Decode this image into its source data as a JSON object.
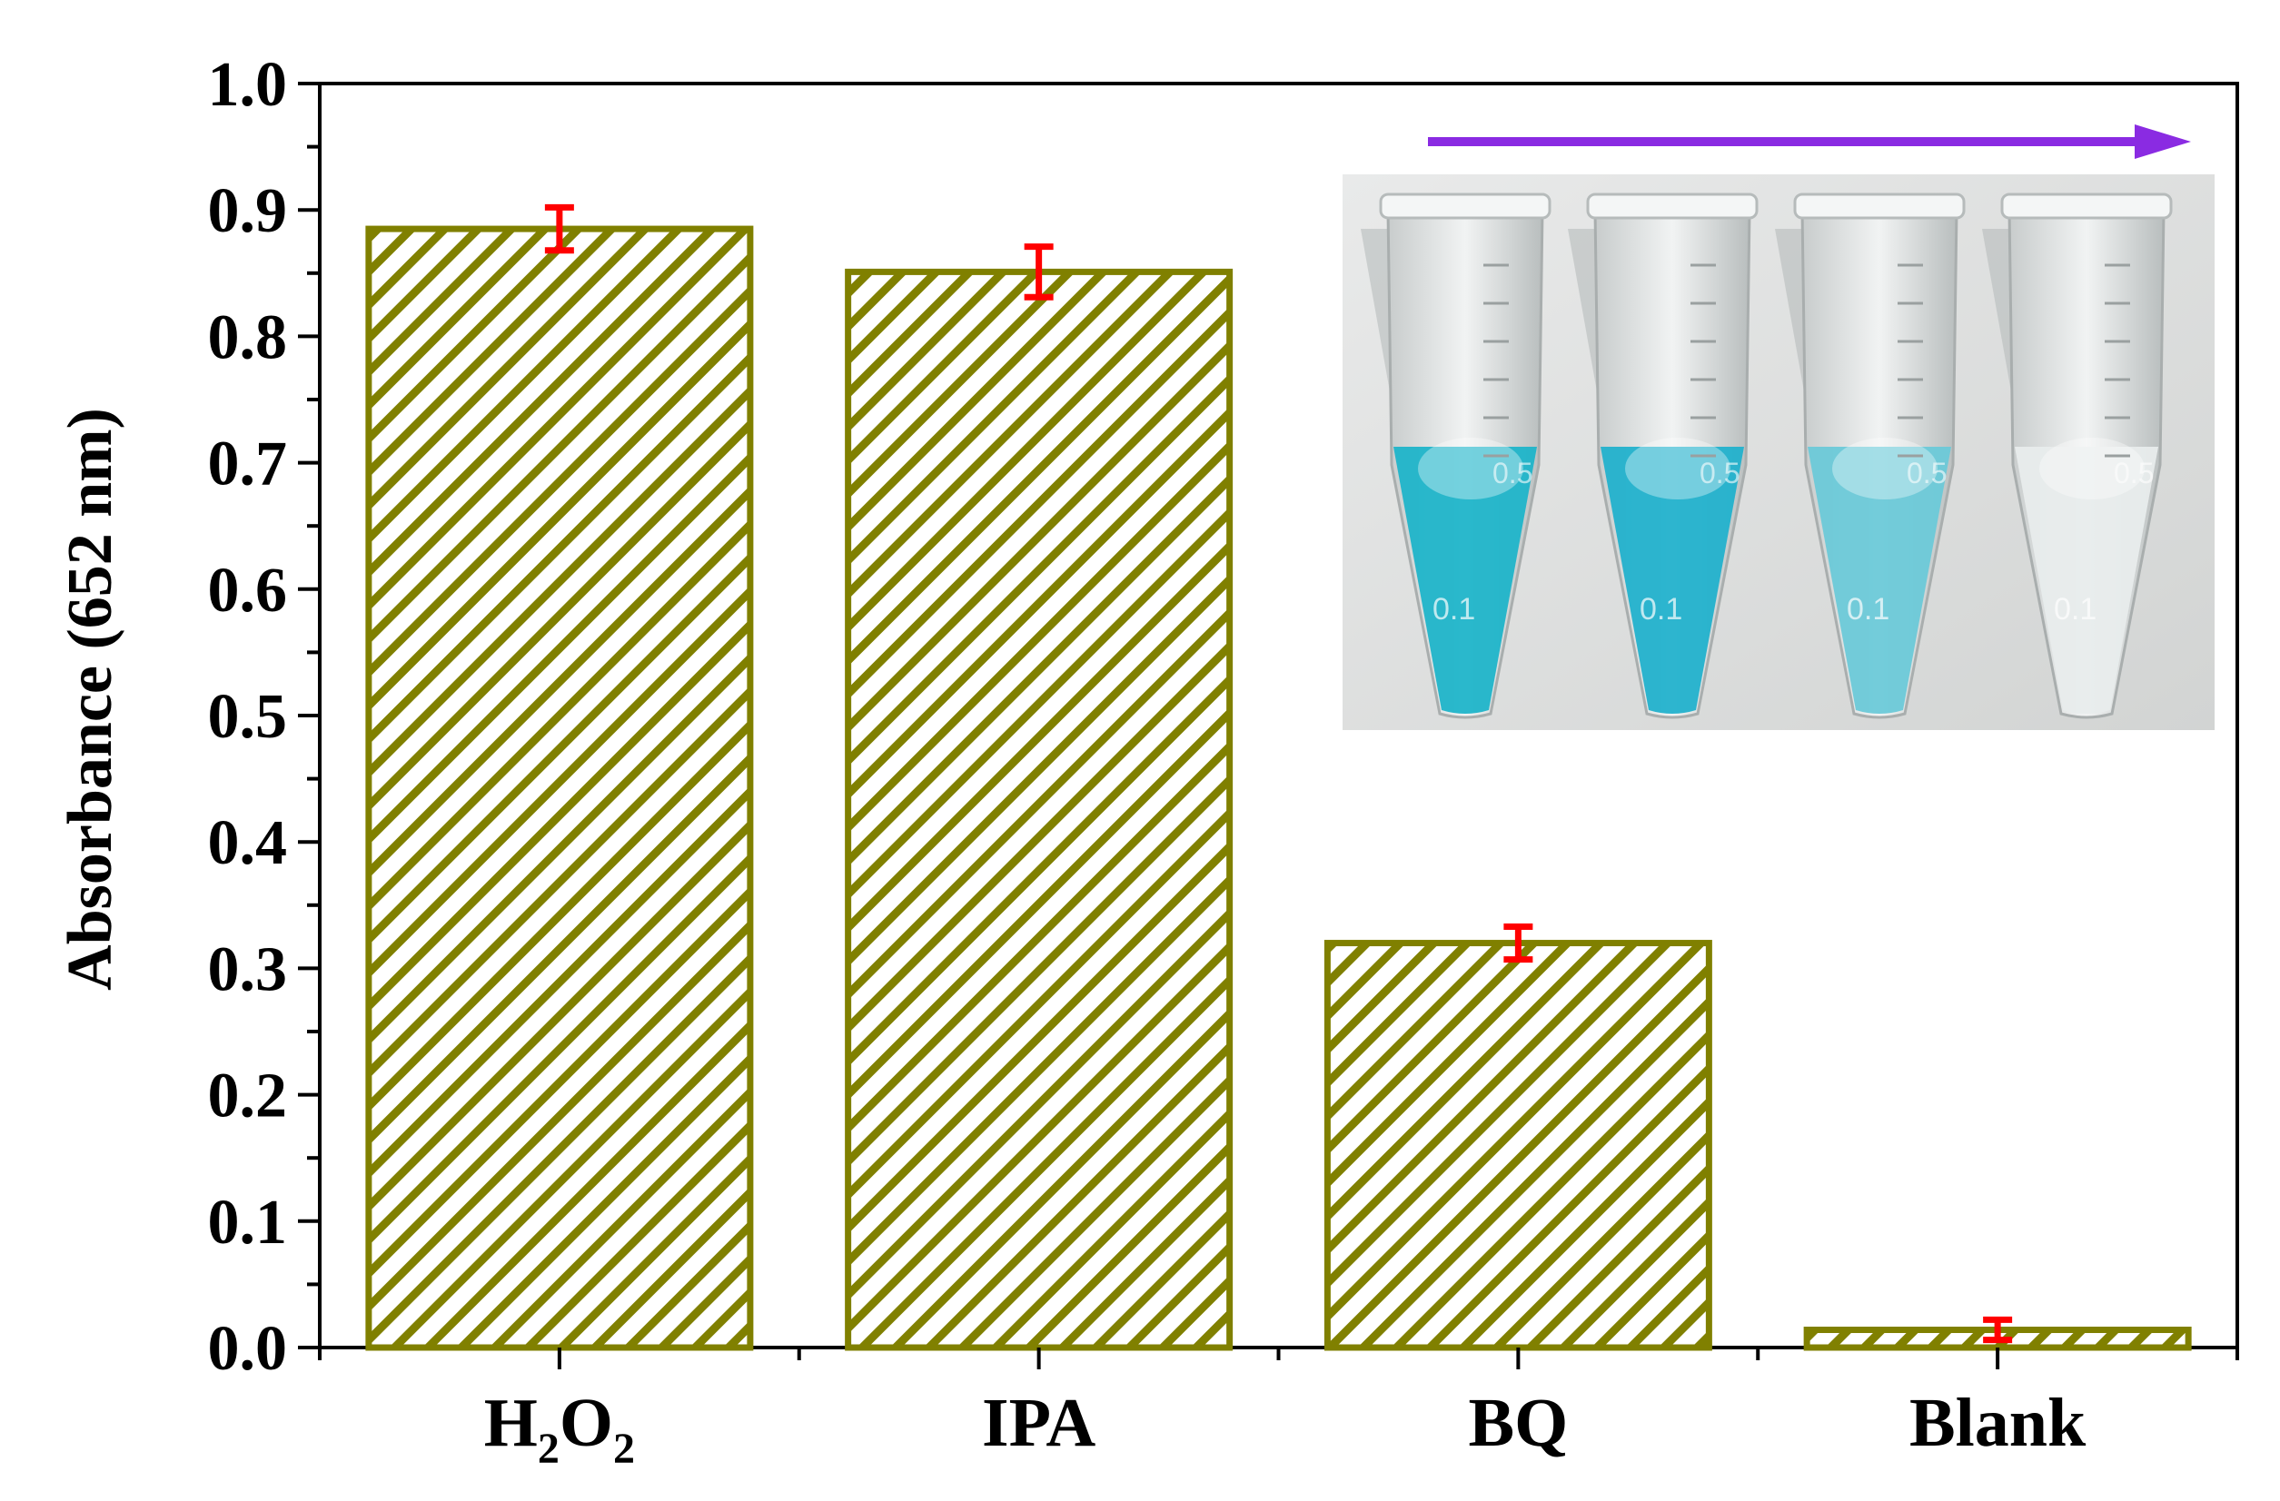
{
  "chart_data": {
    "type": "bar",
    "title": "",
    "xlabel": "",
    "ylabel": "Absorbance (652 nm)",
    "ylim": [
      0,
      1.0
    ],
    "yticks": [
      "0.0",
      "0.1",
      "0.2",
      "0.3",
      "0.4",
      "0.5",
      "0.6",
      "0.7",
      "0.8",
      "0.9",
      "1.0"
    ],
    "categories": [
      {
        "label": "H",
        "sub": "2",
        "label2": "O",
        "sub2": "2"
      },
      {
        "label": "IPA"
      },
      {
        "label": "BQ"
      },
      {
        "label": "Blank"
      }
    ],
    "values": [
      0.885,
      0.851,
      0.32,
      0.014
    ],
    "errors": [
      0.017,
      0.02,
      0.013,
      0.008
    ],
    "grid": false,
    "legend": "none",
    "bar_color": "#808000",
    "error_color": "#ff0000",
    "inset": {
      "type": "photo",
      "arrow_color": "#8a2be2",
      "tube_colors": [
        "#1fb4c9",
        "#22b1cc",
        "#6cc9d8",
        "#e8ecec"
      ],
      "tube_labels": [
        "0.1",
        "0.1",
        "0.1",
        "0.1"
      ],
      "tube_top_labels": [
        "0.5",
        "0.5",
        "0.5",
        "0.5"
      ]
    }
  }
}
